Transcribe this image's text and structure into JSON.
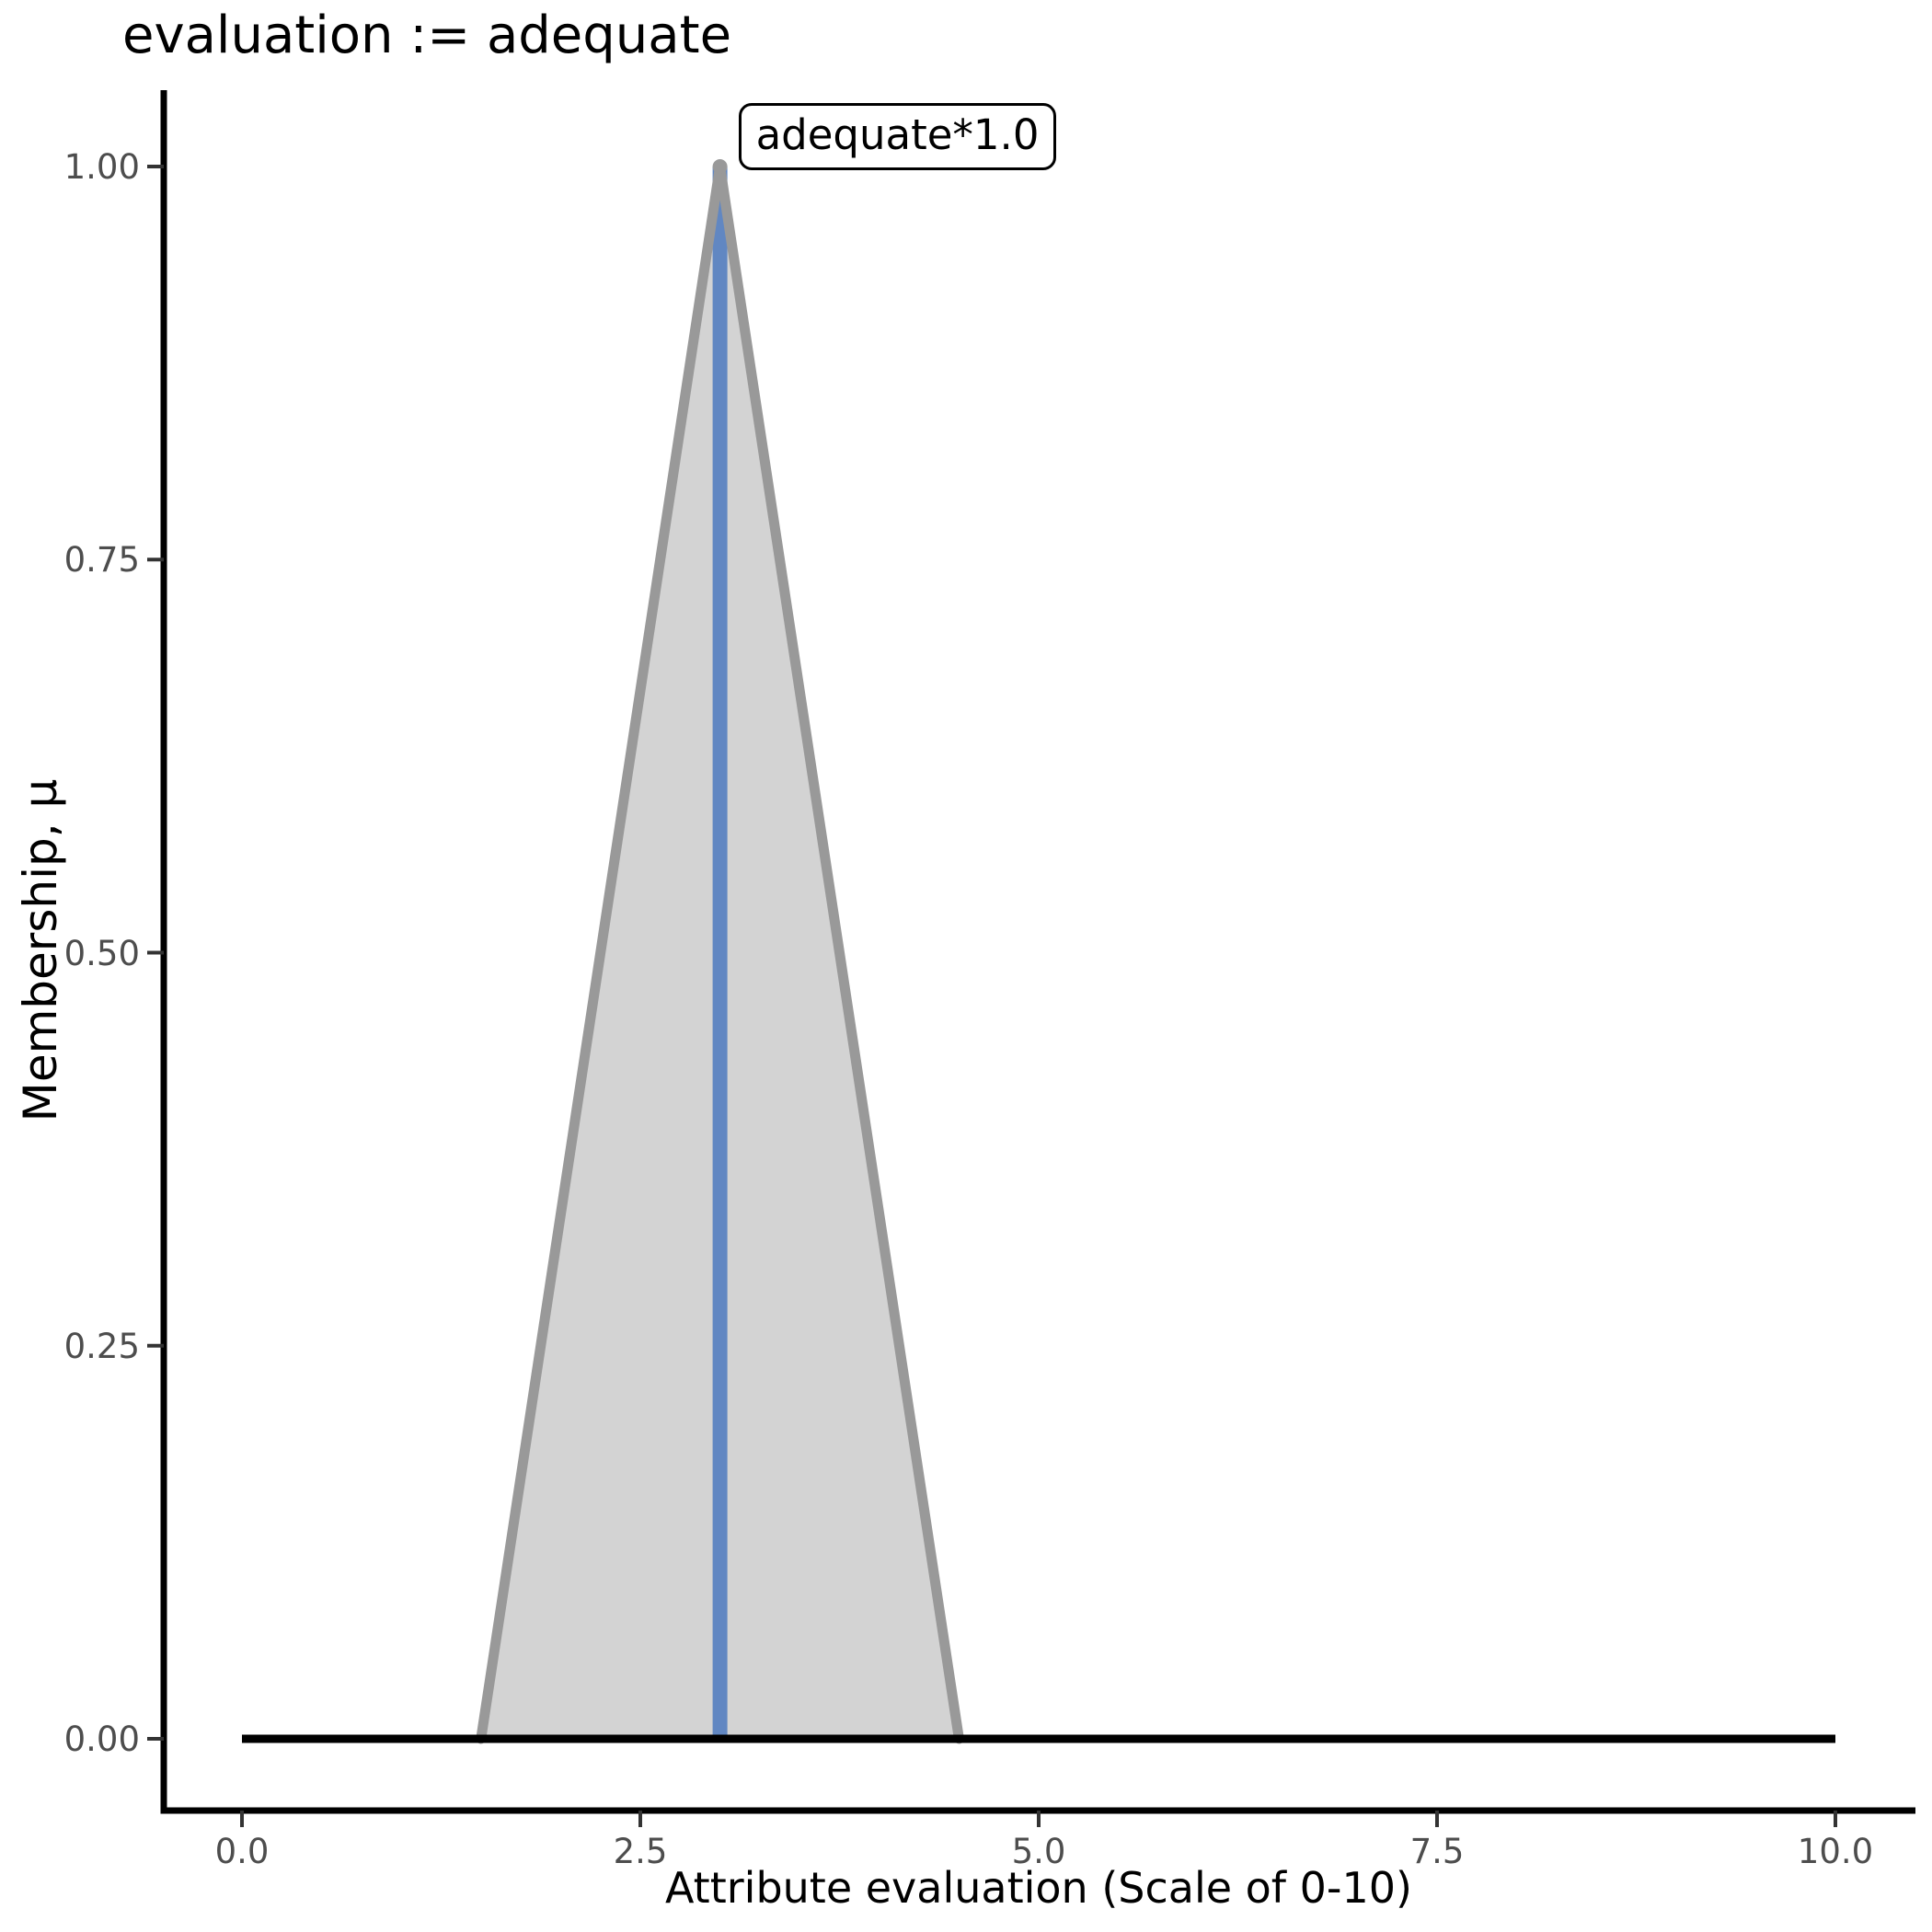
{
  "chart_data": {
    "type": "area",
    "title": "evaluation := adequate",
    "xlabel": "Attribute evaluation (Scale of 0-10)",
    "ylabel": "Membership, μ",
    "xlim": [
      0,
      10
    ],
    "ylim": [
      0,
      1
    ],
    "grid": false,
    "legend": "none",
    "x_ticks": {
      "values": [
        0,
        2.5,
        5,
        7.5,
        10
      ],
      "labels": [
        "0.0",
        "2.5",
        "5.0",
        "7.5",
        "10.0"
      ]
    },
    "y_ticks": {
      "values": [
        0,
        0.25,
        0.5,
        0.75,
        1
      ],
      "labels": [
        "0.00",
        "0.25",
        "0.50",
        "0.75",
        "1.00"
      ]
    },
    "series": [
      {
        "name": "universe-baseline",
        "type": "line",
        "color": "#000000",
        "points": [
          [
            0,
            0
          ],
          [
            10,
            0
          ]
        ]
      },
      {
        "name": "adequate-membership-triangle",
        "type": "area",
        "fill_color": "#D3D3D3",
        "edge_color": "#999999",
        "points": [
          [
            1.5,
            0
          ],
          [
            3,
            1
          ],
          [
            4.5,
            0
          ]
        ]
      },
      {
        "name": "peak-indicator-line",
        "type": "line",
        "color": "#6187C2",
        "points": [
          [
            3,
            0
          ],
          [
            3,
            1
          ]
        ]
      }
    ],
    "peak_marker": {
      "x": 3,
      "y": 1,
      "color": "#999999"
    },
    "annotation": {
      "text": "adequate*1.0",
      "x": 3,
      "y": 1
    }
  },
  "colors": {
    "axis_spine": "#000000",
    "tick_mark": "#333333",
    "tick_label": "#4D4D4D",
    "text": "#000000",
    "annotation_border": "#000000",
    "annotation_background": "#FFFFFF"
  }
}
